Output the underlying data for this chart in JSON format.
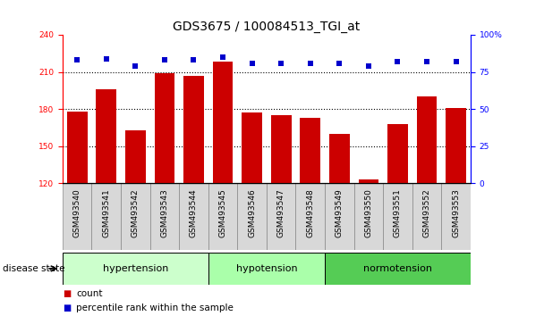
{
  "title": "GDS3675 / 100084513_TGI_at",
  "samples": [
    "GSM493540",
    "GSM493541",
    "GSM493542",
    "GSM493543",
    "GSM493544",
    "GSM493545",
    "GSM493546",
    "GSM493547",
    "GSM493548",
    "GSM493549",
    "GSM493550",
    "GSM493551",
    "GSM493552",
    "GSM493553"
  ],
  "bar_values": [
    178,
    196,
    163,
    209,
    207,
    218,
    177,
    175,
    173,
    160,
    123,
    168,
    190,
    181
  ],
  "percentile_values": [
    83,
    84,
    79,
    83,
    83,
    85,
    81,
    81,
    81,
    81,
    79,
    82,
    82,
    82
  ],
  "groups": [
    {
      "label": "hypertension",
      "start": 0,
      "end": 5,
      "color": "#ccffcc"
    },
    {
      "label": "hypotension",
      "start": 5,
      "end": 9,
      "color": "#aaffaa"
    },
    {
      "label": "normotension",
      "start": 9,
      "end": 14,
      "color": "#55cc55"
    }
  ],
  "ylim_left": [
    120,
    240
  ],
  "ylim_right": [
    0,
    100
  ],
  "yticks_left": [
    120,
    150,
    180,
    210,
    240
  ],
  "yticks_right": [
    0,
    25,
    50,
    75,
    100
  ],
  "ytick_right_labels": [
    "0",
    "25",
    "50",
    "75",
    "100%"
  ],
  "hlines": [
    150,
    180,
    210
  ],
  "bar_color": "#cc0000",
  "dot_color": "#0000cc",
  "bar_bottom": 120,
  "legend_count_label": "count",
  "legend_pct_label": "percentile rank within the sample",
  "disease_state_label": "disease state",
  "title_fontsize": 10,
  "tick_fontsize": 6.5,
  "group_label_fontsize": 8,
  "legend_fontsize": 7.5
}
